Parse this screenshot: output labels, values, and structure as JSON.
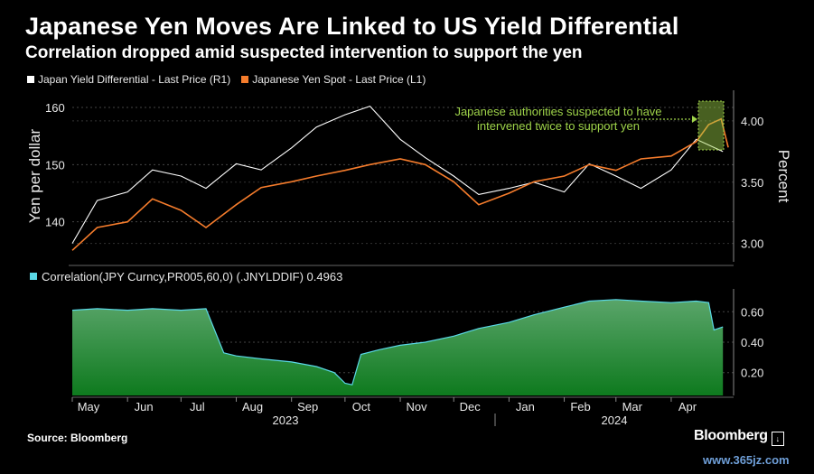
{
  "header": {
    "title": "Japanese Yen Moves Are Linked to US Yield Differential",
    "subtitle": "Correlation dropped amid suspected intervention to support the yen"
  },
  "legend": {
    "series1": "Japan Yield Differential - Last Price (R1)",
    "series2": "Japanese Yen Spot - Last Price (L1)",
    "series3": "Correlation(JPY Curncy,PR005,60,0) (.JNYLDDIF) 0.4963"
  },
  "colors": {
    "yield_line": "#ffffff",
    "yen_line": "#f57c2c",
    "correlation_fill": "#2fa84a",
    "correlation_line": "#5ad8e6",
    "annotation": "#9fd44a",
    "background": "#000000"
  },
  "footer": {
    "source": "Source: Bloomberg",
    "brand": "Bloomberg"
  },
  "watermark": "www.365jz.com",
  "chart_data": [
    {
      "type": "line",
      "x_months": [
        "May",
        "Jun",
        "Jul",
        "Aug",
        "Sep",
        "Oct",
        "Nov",
        "Dec",
        "Jan",
        "Feb",
        "Mar",
        "Apr"
      ],
      "x_years": [
        "2023",
        "2024"
      ],
      "xlabel": "",
      "ylabel_left": "Yen per dollar",
      "ylabel_right": "Percent",
      "ylim_left": [
        133,
        163
      ],
      "ylim_right": [
        2.85,
        4.25
      ],
      "yticks_left": [
        140,
        150,
        160
      ],
      "yticks_right": [
        "3.00",
        "3.50",
        "4.00"
      ],
      "grid": true,
      "annotation": {
        "line1": "Japanese authorities suspected to have",
        "line2": "intervened twice to support yen"
      },
      "series": [
        {
          "name": "Japan Yield Differential - Last Price (R1)",
          "axis": "right",
          "x": [
            "2023-05-01",
            "2023-05-15",
            "2023-06-01",
            "2023-06-15",
            "2023-07-01",
            "2023-07-15",
            "2023-08-01",
            "2023-08-15",
            "2023-09-01",
            "2023-09-15",
            "2023-10-01",
            "2023-10-15",
            "2023-11-01",
            "2023-11-15",
            "2023-12-01",
            "2023-12-15",
            "2024-01-01",
            "2024-01-15",
            "2024-02-01",
            "2024-02-15",
            "2024-03-01",
            "2024-03-15",
            "2024-04-01",
            "2024-04-15",
            "2024-04-30"
          ],
          "values": [
            3.0,
            3.35,
            3.42,
            3.6,
            3.55,
            3.45,
            3.65,
            3.6,
            3.78,
            3.95,
            4.05,
            4.12,
            3.85,
            3.7,
            3.55,
            3.4,
            3.45,
            3.5,
            3.42,
            3.65,
            3.55,
            3.45,
            3.6,
            3.85,
            3.75
          ]
        },
        {
          "name": "Japanese Yen Spot - Last Price (L1)",
          "axis": "left",
          "x": [
            "2023-05-01",
            "2023-05-15",
            "2023-06-01",
            "2023-06-15",
            "2023-07-01",
            "2023-07-15",
            "2023-08-01",
            "2023-08-15",
            "2023-09-01",
            "2023-09-15",
            "2023-10-01",
            "2023-10-15",
            "2023-11-01",
            "2023-11-15",
            "2023-12-01",
            "2023-12-15",
            "2024-01-01",
            "2024-01-15",
            "2024-02-01",
            "2024-02-15",
            "2024-03-01",
            "2024-03-15",
            "2024-04-01",
            "2024-04-15",
            "2024-04-22",
            "2024-04-29",
            "2024-05-03"
          ],
          "values": [
            135,
            139,
            140,
            144,
            142,
            139,
            143,
            146,
            147,
            148,
            149,
            150,
            151,
            150,
            147,
            143,
            145,
            147,
            148,
            150,
            149,
            151,
            151.5,
            154,
            157,
            158,
            153
          ]
        }
      ]
    },
    {
      "type": "area",
      "name": "Correlation(JPY Curncy,PR005,60,0) (.JNYLDDIF) 0.4963",
      "x_months": [
        "May",
        "Jun",
        "Jul",
        "Aug",
        "Sep",
        "Oct",
        "Nov",
        "Dec",
        "Jan",
        "Feb",
        "Mar",
        "Apr"
      ],
      "x_years": [
        "2023",
        "2024"
      ],
      "ylim": [
        0.05,
        0.75
      ],
      "yticks": [
        "0.20",
        "0.40",
        "0.60"
      ],
      "x": [
        "2023-05-01",
        "2023-05-15",
        "2023-06-01",
        "2023-06-15",
        "2023-07-01",
        "2023-07-15",
        "2023-07-25",
        "2023-08-01",
        "2023-08-15",
        "2023-09-01",
        "2023-09-15",
        "2023-09-25",
        "2023-10-01",
        "2023-10-05",
        "2023-10-10",
        "2023-10-20",
        "2023-11-01",
        "2023-11-15",
        "2023-12-01",
        "2023-12-15",
        "2024-01-01",
        "2024-01-15",
        "2024-02-01",
        "2024-02-15",
        "2024-03-01",
        "2024-03-15",
        "2024-04-01",
        "2024-04-15",
        "2024-04-22",
        "2024-04-25",
        "2024-04-30"
      ],
      "values": [
        0.61,
        0.62,
        0.61,
        0.62,
        0.61,
        0.62,
        0.33,
        0.31,
        0.29,
        0.27,
        0.24,
        0.2,
        0.13,
        0.12,
        0.32,
        0.35,
        0.38,
        0.4,
        0.44,
        0.49,
        0.53,
        0.58,
        0.63,
        0.67,
        0.68,
        0.67,
        0.66,
        0.67,
        0.66,
        0.48,
        0.5
      ]
    }
  ]
}
